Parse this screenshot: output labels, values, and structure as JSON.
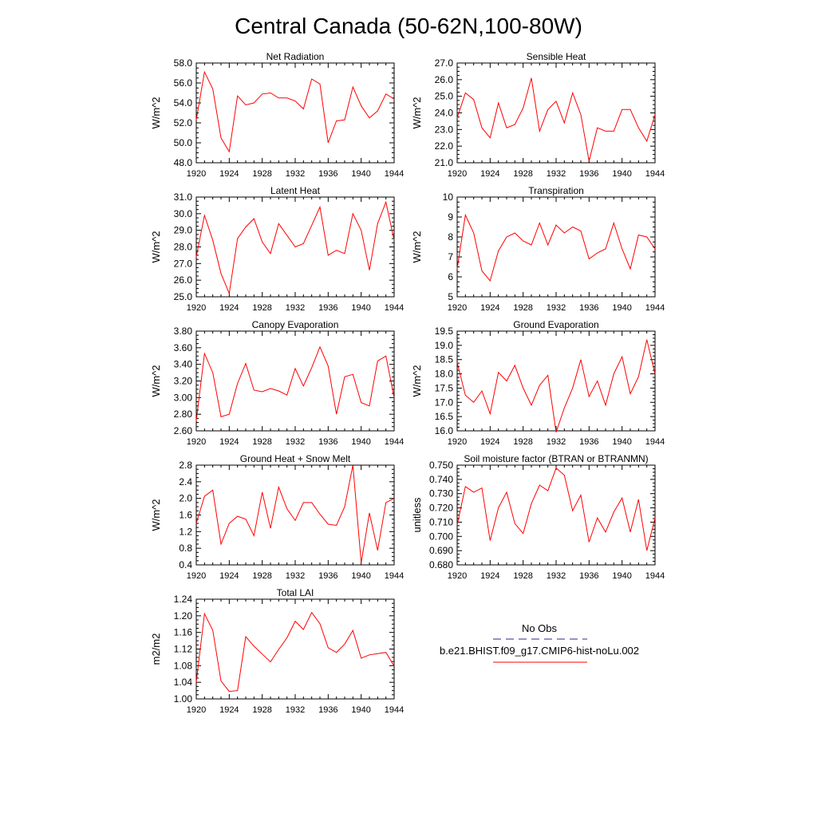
{
  "page_title": "Central Canada (50-62N,100-80W)",
  "legend": {
    "obs_label": "No Obs",
    "model_label": "b.e21.BHIST.f09_g17.CMIP6-hist-noLu.002",
    "obs_color": "#2a2a8c",
    "model_color": "#ff0000"
  },
  "chart_data": [
    {
      "type": "line",
      "title": "Net Radiation",
      "ylabel": "W/m^2",
      "xlim": [
        1920,
        1944
      ],
      "ylim": [
        48.0,
        58.0
      ],
      "xticks": [
        "1920",
        "1924",
        "1928",
        "1932",
        "1936",
        "1940",
        "1944"
      ],
      "yticks": [
        "48.0",
        "50.0",
        "52.0",
        "54.0",
        "56.0",
        "58.0"
      ],
      "x": [
        1920,
        1921,
        1922,
        1923,
        1924,
        1925,
        1926,
        1927,
        1928,
        1929,
        1930,
        1931,
        1932,
        1933,
        1934,
        1935,
        1936,
        1937,
        1938,
        1939,
        1940,
        1941,
        1942,
        1943,
        1944
      ],
      "series": [
        {
          "name": "b.e21.BHIST.f09_g17.CMIP6-hist-noLu.002",
          "values": [
            52.3,
            57.1,
            55.4,
            50.5,
            49.1,
            54.7,
            53.8,
            54.0,
            54.9,
            55.0,
            54.5,
            54.5,
            54.2,
            53.4,
            56.4,
            55.9,
            50.0,
            52.2,
            52.3,
            55.6,
            53.7,
            52.5,
            53.2,
            54.9,
            54.4
          ]
        }
      ]
    },
    {
      "type": "line",
      "title": "Sensible Heat",
      "ylabel": "W/m^2",
      "xlim": [
        1920,
        1944
      ],
      "ylim": [
        21.0,
        27.0
      ],
      "xticks": [
        "1920",
        "1924",
        "1928",
        "1932",
        "1936",
        "1940",
        "1944"
      ],
      "yticks": [
        "21.0",
        "22.0",
        "23.0",
        "24.0",
        "25.0",
        "26.0",
        "27.0"
      ],
      "x": [
        1920,
        1921,
        1922,
        1923,
        1924,
        1925,
        1926,
        1927,
        1928,
        1929,
        1930,
        1931,
        1932,
        1933,
        1934,
        1935,
        1936,
        1937,
        1938,
        1939,
        1940,
        1941,
        1942,
        1943,
        1944
      ],
      "series": [
        {
          "name": "b.e21.BHIST.f09_g17.CMIP6-hist-noLu.002",
          "values": [
            23.7,
            25.2,
            24.8,
            23.1,
            22.5,
            24.6,
            23.1,
            23.3,
            24.3,
            26.1,
            22.9,
            24.2,
            24.7,
            23.4,
            25.2,
            23.9,
            21.1,
            23.1,
            22.9,
            22.9,
            24.2,
            24.2,
            23.1,
            22.3,
            23.9
          ]
        }
      ]
    },
    {
      "type": "line",
      "title": "Latent Heat",
      "ylabel": "W/m^2",
      "xlim": [
        1920,
        1944
      ],
      "ylim": [
        25.0,
        31.0
      ],
      "xticks": [
        "1920",
        "1924",
        "1928",
        "1932",
        "1936",
        "1940",
        "1944"
      ],
      "yticks": [
        "25.0",
        "26.0",
        "27.0",
        "28.0",
        "29.0",
        "30.0",
        "31.0"
      ],
      "x": [
        1920,
        1921,
        1922,
        1923,
        1924,
        1925,
        1926,
        1927,
        1928,
        1929,
        1930,
        1931,
        1932,
        1933,
        1934,
        1935,
        1936,
        1937,
        1938,
        1939,
        1940,
        1941,
        1942,
        1943,
        1944
      ],
      "series": [
        {
          "name": "b.e21.BHIST.f09_g17.CMIP6-hist-noLu.002",
          "values": [
            27.4,
            29.9,
            28.4,
            26.4,
            25.2,
            28.5,
            29.2,
            29.7,
            28.3,
            27.6,
            29.4,
            28.7,
            28.0,
            28.2,
            29.3,
            30.4,
            27.5,
            27.8,
            27.6,
            30.0,
            29.0,
            26.6,
            29.4,
            30.7,
            28.4
          ]
        }
      ]
    },
    {
      "type": "line",
      "title": "Transpiration",
      "ylabel": "W/m^2",
      "xlim": [
        1920,
        1944
      ],
      "ylim": [
        5,
        10
      ],
      "xticks": [
        "1920",
        "1924",
        "1928",
        "1932",
        "1936",
        "1940",
        "1944"
      ],
      "yticks": [
        "5",
        "6",
        "7",
        "8",
        "9",
        "10"
      ],
      "x": [
        1920,
        1921,
        1922,
        1923,
        1924,
        1925,
        1926,
        1927,
        1928,
        1929,
        1930,
        1931,
        1932,
        1933,
        1934,
        1935,
        1936,
        1937,
        1938,
        1939,
        1940,
        1941,
        1942,
        1943,
        1944
      ],
      "series": [
        {
          "name": "b.e21.BHIST.f09_g17.CMIP6-hist-noLu.002",
          "values": [
            6.4,
            9.1,
            8.2,
            6.3,
            5.8,
            7.3,
            8.0,
            8.2,
            7.8,
            7.6,
            8.7,
            7.6,
            8.6,
            8.2,
            8.5,
            8.3,
            6.9,
            7.2,
            7.4,
            8.7,
            7.4,
            6.4,
            8.1,
            8.0,
            7.4
          ]
        }
      ]
    },
    {
      "type": "line",
      "title": "Canopy Evaporation",
      "ylabel": "W/m^2",
      "xlim": [
        1920,
        1944
      ],
      "ylim": [
        2.6,
        3.8
      ],
      "xticks": [
        "1920",
        "1924",
        "1928",
        "1932",
        "1936",
        "1940",
        "1944"
      ],
      "yticks": [
        "2.60",
        "2.80",
        "3.00",
        "3.20",
        "3.40",
        "3.60",
        "3.80"
      ],
      "x": [
        1920,
        1921,
        1922,
        1923,
        1924,
        1925,
        1926,
        1927,
        1928,
        1929,
        1930,
        1931,
        1932,
        1933,
        1934,
        1935,
        1936,
        1937,
        1938,
        1939,
        1940,
        1941,
        1942,
        1943,
        1944
      ],
      "series": [
        {
          "name": "b.e21.BHIST.f09_g17.CMIP6-hist-noLu.002",
          "values": [
            2.72,
            3.53,
            3.3,
            2.77,
            2.8,
            3.17,
            3.41,
            3.09,
            3.07,
            3.11,
            3.08,
            3.03,
            3.35,
            3.14,
            3.36,
            3.61,
            3.38,
            2.8,
            3.25,
            3.28,
            2.94,
            2.9,
            3.44,
            3.5,
            3.0
          ]
        }
      ]
    },
    {
      "type": "line",
      "title": "Ground Evaporation",
      "ylabel": "W/m^2",
      "xlim": [
        1920,
        1944
      ],
      "ylim": [
        16.0,
        19.5
      ],
      "xticks": [
        "1920",
        "1924",
        "1928",
        "1932",
        "1936",
        "1940",
        "1944"
      ],
      "yticks": [
        "16.0",
        "16.5",
        "17.0",
        "17.5",
        "18.0",
        "18.5",
        "19.0",
        "19.5"
      ],
      "x": [
        1920,
        1921,
        1922,
        1923,
        1924,
        1925,
        1926,
        1927,
        1928,
        1929,
        1930,
        1931,
        1932,
        1933,
        1934,
        1935,
        1936,
        1937,
        1938,
        1939,
        1940,
        1941,
        1942,
        1943,
        1944
      ],
      "series": [
        {
          "name": "b.e21.BHIST.f09_g17.CMIP6-hist-noLu.002",
          "values": [
            18.4,
            17.25,
            17.0,
            17.4,
            16.6,
            18.05,
            17.75,
            18.3,
            17.5,
            16.9,
            17.6,
            17.95,
            15.95,
            16.8,
            17.5,
            18.5,
            17.2,
            17.75,
            16.9,
            18.0,
            18.6,
            17.3,
            17.9,
            19.2,
            18.0
          ]
        }
      ]
    },
    {
      "type": "line",
      "title": "Ground Heat + Snow Melt",
      "ylabel": "W/m^2",
      "xlim": [
        1920,
        1944
      ],
      "ylim": [
        0.4,
        2.8
      ],
      "xticks": [
        "1920",
        "1924",
        "1928",
        "1932",
        "1936",
        "1940",
        "1944"
      ],
      "yticks": [
        "0.4",
        "0.8",
        "1.2",
        "1.6",
        "2.0",
        "2.4",
        "2.8"
      ],
      "x": [
        1920,
        1921,
        1922,
        1923,
        1924,
        1925,
        1926,
        1927,
        1928,
        1929,
        1930,
        1931,
        1932,
        1933,
        1934,
        1935,
        1936,
        1937,
        1938,
        1939,
        1940,
        1941,
        1942,
        1943,
        1944
      ],
      "series": [
        {
          "name": "b.e21.BHIST.f09_g17.CMIP6-hist-noLu.002",
          "values": [
            1.4,
            2.05,
            2.2,
            0.9,
            1.4,
            1.57,
            1.5,
            1.1,
            2.15,
            1.28,
            2.27,
            1.75,
            1.47,
            1.9,
            1.9,
            1.62,
            1.38,
            1.35,
            1.8,
            2.8,
            0.45,
            1.65,
            0.75,
            1.9,
            2.0
          ]
        }
      ]
    },
    {
      "type": "line",
      "title": "Soil moisture factor (BTRAN or BTRANMN)",
      "ylabel": "unitless",
      "xlim": [
        1920,
        1944
      ],
      "ylim": [
        0.68,
        0.75
      ],
      "xticks": [
        "1920",
        "1924",
        "1928",
        "1932",
        "1936",
        "1940",
        "1944"
      ],
      "yticks": [
        "0.680",
        "0.690",
        "0.700",
        "0.710",
        "0.720",
        "0.730",
        "0.740",
        "0.750"
      ],
      "x": [
        1920,
        1921,
        1922,
        1923,
        1924,
        1925,
        1926,
        1927,
        1928,
        1929,
        1930,
        1931,
        1932,
        1933,
        1934,
        1935,
        1936,
        1937,
        1938,
        1939,
        1940,
        1941,
        1942,
        1943,
        1944
      ],
      "series": [
        {
          "name": "b.e21.BHIST.f09_g17.CMIP6-hist-noLu.002",
          "values": [
            0.708,
            0.735,
            0.731,
            0.734,
            0.697,
            0.72,
            0.731,
            0.709,
            0.702,
            0.723,
            0.736,
            0.732,
            0.748,
            0.743,
            0.718,
            0.729,
            0.696,
            0.713,
            0.703,
            0.717,
            0.727,
            0.703,
            0.726,
            0.69,
            0.713
          ]
        }
      ]
    },
    {
      "type": "line",
      "title": "Total LAI",
      "ylabel": "m2/m2",
      "xlim": [
        1920,
        1944
      ],
      "ylim": [
        1.0,
        1.24
      ],
      "xticks": [
        "1920",
        "1924",
        "1928",
        "1932",
        "1936",
        "1940",
        "1944"
      ],
      "yticks": [
        "1.00",
        "1.04",
        "1.08",
        "1.12",
        "1.16",
        "1.20",
        "1.24"
      ],
      "x": [
        1920,
        1921,
        1922,
        1923,
        1924,
        1925,
        1926,
        1927,
        1928,
        1929,
        1930,
        1931,
        1932,
        1933,
        1934,
        1935,
        1936,
        1937,
        1938,
        1939,
        1940,
        1941,
        1942,
        1943,
        1944
      ],
      "series": [
        {
          "name": "b.e21.BHIST.f09_g17.CMIP6-hist-noLu.002",
          "values": [
            1.04,
            1.205,
            1.165,
            1.043,
            1.018,
            1.02,
            1.15,
            1.127,
            1.108,
            1.089,
            1.119,
            1.147,
            1.187,
            1.167,
            1.208,
            1.181,
            1.123,
            1.112,
            1.132,
            1.165,
            1.098,
            1.106,
            1.109,
            1.112,
            1.079
          ]
        }
      ]
    }
  ]
}
